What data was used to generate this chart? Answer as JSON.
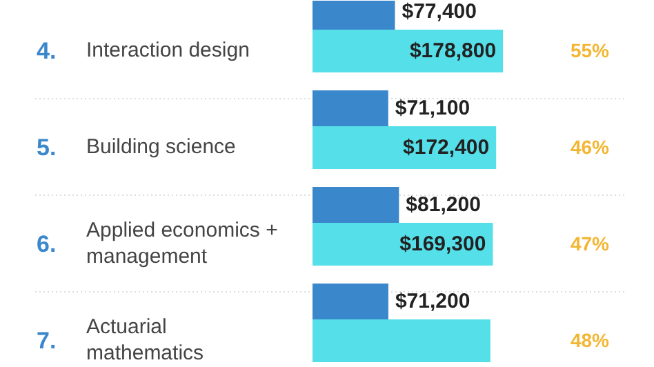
{
  "chart_data": {
    "type": "bar",
    "orientation": "horizontal",
    "categories": [
      "Interaction design",
      "Building science",
      "Applied economics + management",
      "Actuarial mathematics"
    ],
    "series": [
      {
        "color": "#3b87cc",
        "values": [
          77400,
          71100,
          81200,
          71200
        ],
        "value_labels": [
          "$77,400",
          "$71,100",
          "$81,200",
          "$71,200"
        ]
      },
      {
        "color": "#55dfe9",
        "values": [
          178800,
          172400,
          169300,
          167000
        ],
        "value_labels": [
          "$178,800",
          "$172,400",
          "$169,300",
          null
        ]
      }
    ],
    "annotations": [
      "4.",
      "55%",
      "5.",
      "46%",
      "6.",
      "47%",
      "7.",
      "48%"
    ],
    "grid": false
  }
}
